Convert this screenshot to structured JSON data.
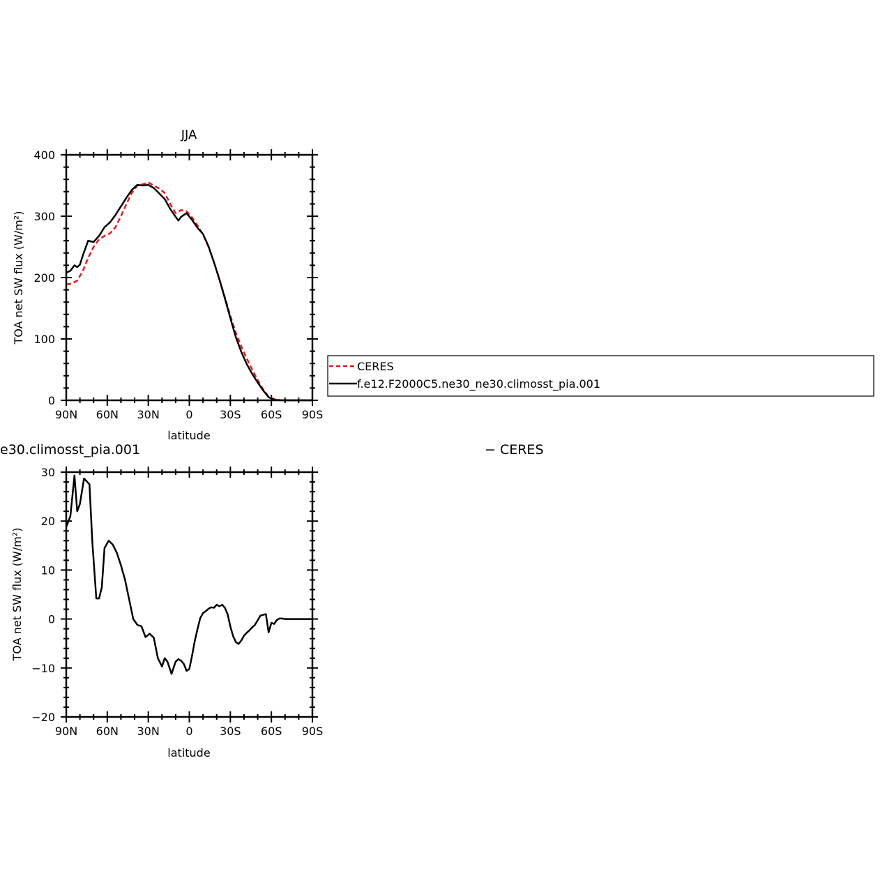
{
  "chart_data": [
    {
      "type": "line",
      "title": "JJA",
      "xlabel": "latitude",
      "ylabel": "TOA net SW flux (W/m²)",
      "xlim": [
        90,
        -90
      ],
      "ylim": [
        0,
        400
      ],
      "xticks": [
        {
          "value": 90,
          "label": "90N"
        },
        {
          "value": 60,
          "label": "60N"
        },
        {
          "value": 30,
          "label": "30N"
        },
        {
          "value": 0,
          "label": "0"
        },
        {
          "value": -30,
          "label": "30S"
        },
        {
          "value": -60,
          "label": "60S"
        },
        {
          "value": -90,
          "label": "90S"
        }
      ],
      "yticks": [
        0,
        100,
        200,
        300,
        400
      ],
      "grid": false,
      "legend": "right, outside plot",
      "series": [
        {
          "name": "CERES",
          "color": "#e41a1c",
          "dash": true,
          "x": [
            90,
            86,
            82,
            78,
            74,
            70,
            66,
            62,
            58,
            54,
            50,
            46,
            42,
            38,
            34,
            30,
            26,
            22,
            18,
            14,
            10,
            6,
            2,
            -2,
            -6,
            -10,
            -14,
            -18,
            -22,
            -26,
            -30,
            -34,
            -38,
            -42,
            -46,
            -50,
            -54,
            -58,
            -62,
            -66,
            -70,
            -74,
            -78,
            -82,
            -86,
            -90
          ],
          "y": [
            189,
            190,
            195,
            210,
            232,
            250,
            262,
            268,
            272,
            282,
            300,
            320,
            338,
            350,
            352,
            355,
            350,
            345,
            338,
            320,
            305,
            310,
            308,
            298,
            285,
            270,
            250,
            225,
            198,
            168,
            138,
            110,
            88,
            68,
            50,
            33,
            18,
            6,
            2,
            0.5,
            0,
            0,
            0,
            0,
            0,
            0
          ]
        },
        {
          "name": "f.e12.F2000C5.ne30_ne30.climosst_pia.001",
          "color": "#000000",
          "dash": false,
          "x": [
            90,
            87,
            84,
            82,
            80,
            78,
            74,
            70,
            66,
            62,
            58,
            54,
            50,
            46,
            42,
            38,
            34,
            30,
            26,
            22,
            18,
            14,
            10,
            8,
            6,
            2,
            -2,
            -6,
            -10,
            -14,
            -18,
            -22,
            -26,
            -30,
            -34,
            -38,
            -42,
            -46,
            -50,
            -54,
            -58,
            -62,
            -66,
            -70,
            -74,
            -78,
            -82,
            -86,
            -90
          ],
          "y": [
            208,
            211,
            220,
            217,
            221,
            235,
            260,
            258,
            268,
            282,
            290,
            302,
            316,
            330,
            343,
            351,
            350,
            351,
            346,
            337,
            328,
            312,
            299,
            293,
            299,
            305,
            294,
            281,
            271,
            251,
            225,
            197,
            166,
            134,
            103,
            79,
            59,
            43,
            29,
            16,
            5,
            1,
            0,
            0,
            0,
            0,
            0,
            0,
            0
          ]
        }
      ]
    },
    {
      "type": "line",
      "title": "e30.climosst_pia.001",
      "title_right": "− CERES",
      "xlabel": "latitude",
      "ylabel": "TOA net SW flux (W/m²)",
      "xlim": [
        90,
        -90
      ],
      "ylim": [
        -20,
        30
      ],
      "xticks": [
        {
          "value": 90,
          "label": "90N"
        },
        {
          "value": 60,
          "label": "60N"
        },
        {
          "value": 30,
          "label": "30N"
        },
        {
          "value": 0,
          "label": "0"
        },
        {
          "value": -30,
          "label": "30S"
        },
        {
          "value": -60,
          "label": "60S"
        },
        {
          "value": -90,
          "label": "90S"
        }
      ],
      "yticks": [
        -20,
        -10,
        0,
        10,
        20,
        30
      ],
      "ytick_labels": [
        "−20",
        "−10",
        "0",
        "10",
        "20",
        "30"
      ],
      "grid": false,
      "series": [
        {
          "color": "#000000",
          "dash": false,
          "x": [
            90,
            87,
            84,
            82,
            80,
            77,
            73,
            71,
            68,
            66,
            64,
            62,
            59,
            56,
            53,
            50,
            47,
            44,
            41,
            38,
            35,
            32,
            29,
            26,
            23,
            20,
            18,
            16,
            13,
            10,
            8,
            6,
            4,
            2,
            0,
            -2,
            -4,
            -6,
            -8,
            -10,
            -12,
            -14,
            -16,
            -18,
            -20,
            -22,
            -24,
            -26,
            -28,
            -30,
            -32,
            -34,
            -36,
            -38,
            -40,
            -42,
            -44,
            -46,
            -48,
            -52,
            -56,
            -58,
            -60,
            -62,
            -64,
            -66,
            -68,
            -70,
            -72,
            -74,
            -78,
            -82,
            -86,
            -90
          ],
          "y": [
            18.8,
            21,
            29.3,
            22,
            23.5,
            28.7,
            27.5,
            16,
            4.2,
            4.2,
            6.5,
            14.5,
            16,
            15.2,
            13.5,
            11,
            8,
            4,
            0,
            -1.2,
            -1.5,
            -3.7,
            -3,
            -3.8,
            -8,
            -9.7,
            -8,
            -8.7,
            -11.2,
            -8.7,
            -8.2,
            -8.5,
            -9.2,
            -10.6,
            -10.2,
            -7.5,
            -4.5,
            -2,
            0.2,
            1.2,
            1.6,
            2.1,
            2.4,
            2.3,
            2.9,
            2.6,
            2.9,
            2.3,
            1,
            -1.5,
            -3.5,
            -4.7,
            -5.1,
            -4.4,
            -3.4,
            -2.8,
            -2.3,
            -1.7,
            -1.2,
            0.7,
            1,
            -2.7,
            -0.8,
            -1,
            -0.2,
            0.1,
            0.1,
            0,
            0,
            0,
            0,
            0,
            0,
            0
          ]
        }
      ]
    }
  ]
}
